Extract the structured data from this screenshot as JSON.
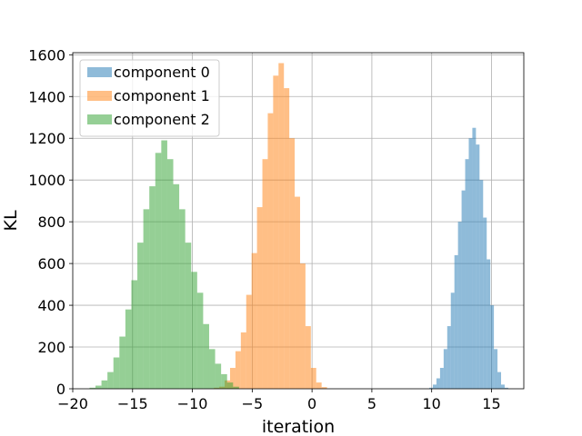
{
  "chart_data": {
    "type": "bar",
    "subtype": "overlaid-histogram",
    "xlabel": "iteration",
    "ylabel": "KL",
    "xlim": [
      -20,
      17.7
    ],
    "ylim": [
      0,
      1610
    ],
    "xticks": [
      -20,
      -15,
      -10,
      -5,
      0,
      5,
      10,
      15
    ],
    "yticks": [
      0,
      200,
      400,
      600,
      800,
      1000,
      1200,
      1400,
      1600
    ],
    "grid": true,
    "legend_position": "top-left",
    "alpha": 0.5,
    "series": [
      {
        "name": "component 0",
        "color": "#1f77b4",
        "bin_start": 9.8,
        "bin_width": 0.3,
        "counts": [
          5,
          20,
          50,
          100,
          190,
          300,
          460,
          640,
          800,
          950,
          1100,
          1200,
          1250,
          1170,
          1000,
          820,
          620,
          400,
          190,
          80,
          20,
          5
        ]
      },
      {
        "name": "component 1",
        "color": "#ff7f0e",
        "bin_start": -8.2,
        "bin_width": 0.45,
        "counts": [
          5,
          10,
          40,
          100,
          180,
          270,
          450,
          650,
          870,
          1100,
          1320,
          1500,
          1560,
          1440,
          1200,
          920,
          600,
          300,
          100,
          30,
          8
        ]
      },
      {
        "name": "component 2",
        "color": "#2ca02c",
        "bin_start": -18.6,
        "bin_width": 0.5,
        "counts": [
          5,
          15,
          40,
          80,
          150,
          250,
          380,
          520,
          700,
          860,
          970,
          1130,
          1190,
          1100,
          980,
          860,
          700,
          560,
          460,
          310,
          190,
          120,
          70,
          30,
          10
        ]
      }
    ]
  }
}
